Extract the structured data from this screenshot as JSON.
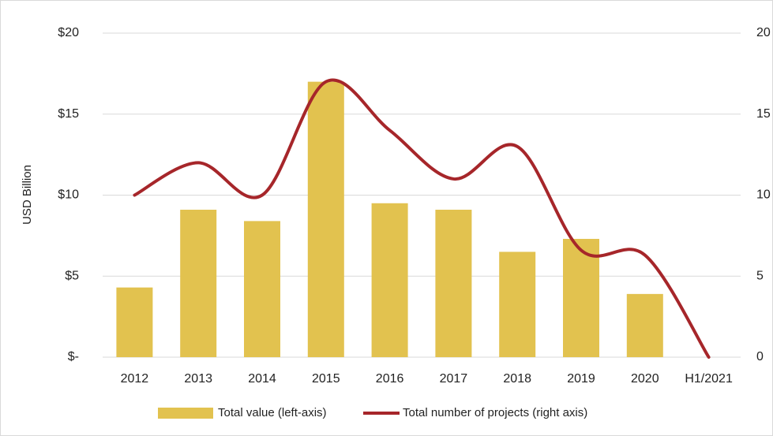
{
  "chart_data": {
    "type": "bar",
    "y_label": "USD Billion",
    "categories": [
      "2012",
      "2013",
      "2014",
      "2015",
      "2016",
      "2017",
      "2018",
      "2019",
      "2020",
      "H1/2021"
    ],
    "series": [
      {
        "name": "Total value (left-axis)",
        "type": "bar",
        "color": "#e2c24f",
        "values": [
          4.3,
          9.1,
          8.4,
          17.0,
          9.5,
          9.1,
          6.5,
          7.3,
          3.9,
          null
        ]
      },
      {
        "name": "Total number of projects (right axis)",
        "type": "line",
        "axis": "y2",
        "color": "#a6262a",
        "values": [
          10,
          12,
          10,
          17,
          14,
          11,
          13,
          6.6,
          6.3,
          0
        ]
      }
    ],
    "ylim": [
      0,
      20
    ],
    "yticks": [
      {
        "value": 0,
        "label": "$-"
      },
      {
        "value": 5,
        "label": "$5"
      },
      {
        "value": 10,
        "label": "$10"
      },
      {
        "value": 15,
        "label": "$15"
      },
      {
        "value": 20,
        "label": "$20"
      }
    ],
    "y2lim": [
      0,
      20
    ],
    "y2ticks": [
      0,
      5,
      10,
      15,
      20
    ],
    "grid": true,
    "legend": "bottom"
  }
}
